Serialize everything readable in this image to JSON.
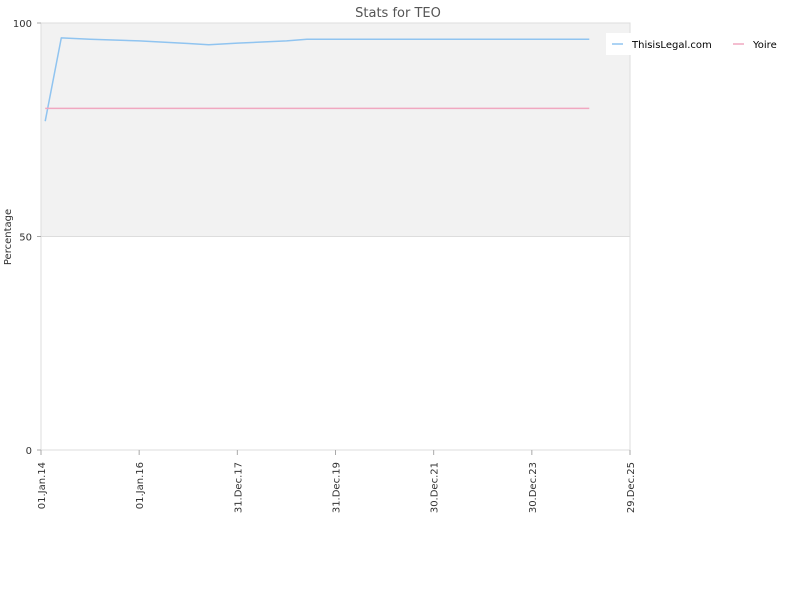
{
  "chart_data": {
    "type": "line",
    "title": "Stats for TEO",
    "ylabel": "Percentage",
    "xlabel": "",
    "ylim": [
      0,
      100
    ],
    "xlim": [
      "2014-01-01",
      "2025-12-29"
    ],
    "y_ticks": [
      0,
      50,
      100
    ],
    "x_ticks": [
      {
        "date": "2014-01-01",
        "label": "01.Jan.14"
      },
      {
        "date": "2016-01-01",
        "label": "01.Jan.16"
      },
      {
        "date": "2017-12-31",
        "label": "31.Dec.17"
      },
      {
        "date": "2019-12-31",
        "label": "31.Dec.19"
      },
      {
        "date": "2021-12-30",
        "label": "30.Dec.21"
      },
      {
        "date": "2023-12-30",
        "label": "30.Dec.23"
      },
      {
        "date": "2025-12-29",
        "label": "29.Dec.25"
      }
    ],
    "shaded_band": {
      "from": 50,
      "to": 100,
      "color": "#f2f2f2"
    },
    "legend_position": "top-right",
    "series": [
      {
        "name": "ThisisLegal.com",
        "color": "#90c4f0",
        "points": [
          {
            "x": "2014-02-01",
            "y": 77
          },
          {
            "x": "2014-06-01",
            "y": 96.5
          },
          {
            "x": "2015-01-01",
            "y": 96.2
          },
          {
            "x": "2016-01-01",
            "y": 95.8
          },
          {
            "x": "2017-01-01",
            "y": 95.2
          },
          {
            "x": "2017-06-01",
            "y": 94.9
          },
          {
            "x": "2018-01-01",
            "y": 95.3
          },
          {
            "x": "2019-01-01",
            "y": 95.8
          },
          {
            "x": "2019-06-01",
            "y": 96.2
          },
          {
            "x": "2025-03-01",
            "y": 96.2
          }
        ]
      },
      {
        "name": "Yoire",
        "color": "#f0a8c0",
        "points": [
          {
            "x": "2014-02-01",
            "y": 80
          },
          {
            "x": "2025-03-01",
            "y": 80
          }
        ]
      }
    ]
  }
}
